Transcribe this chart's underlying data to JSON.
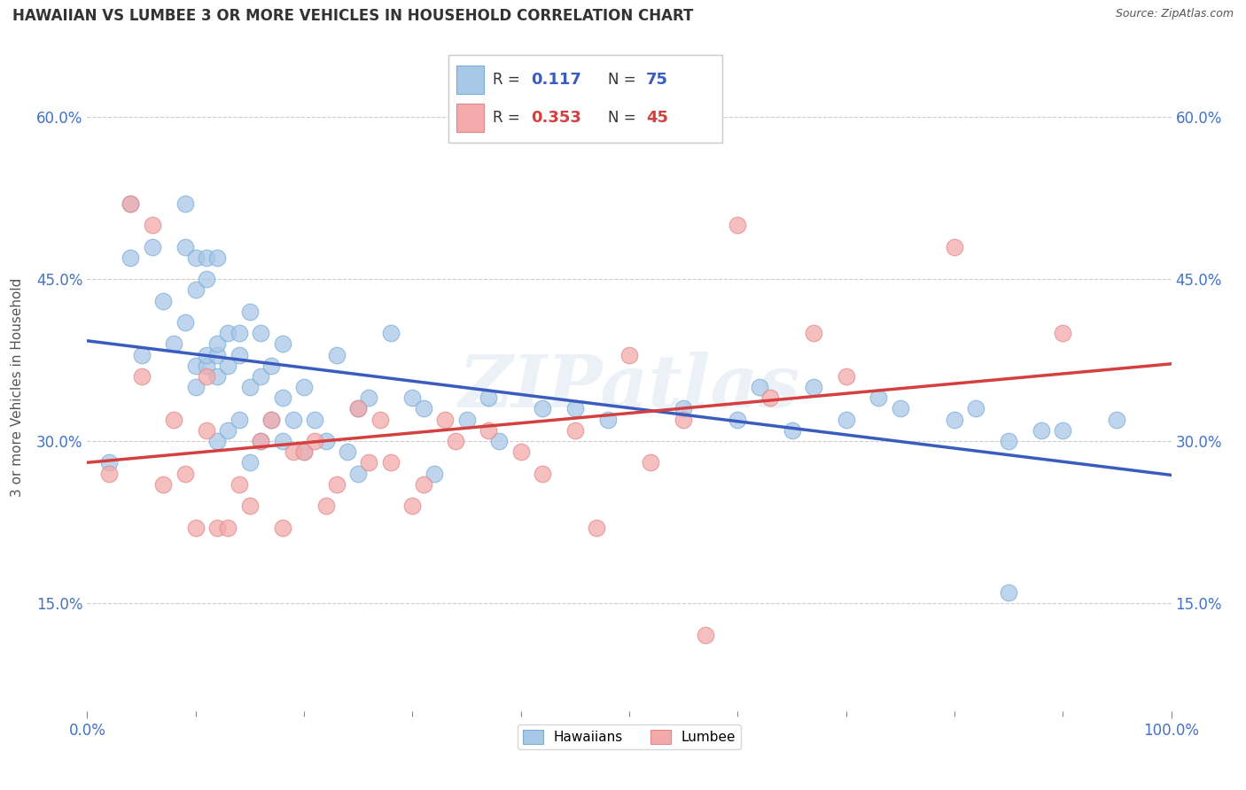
{
  "title": "HAWAIIAN VS LUMBEE 3 OR MORE VEHICLES IN HOUSEHOLD CORRELATION CHART",
  "source": "Source: ZipAtlas.com",
  "ylabel": "3 or more Vehicles in Household",
  "xlim": [
    0,
    100
  ],
  "ylim": [
    5,
    65
  ],
  "yticks": [
    15.0,
    30.0,
    45.0,
    60.0
  ],
  "hawaiian_R": 0.117,
  "hawaiian_N": 75,
  "lumbee_R": 0.353,
  "lumbee_N": 45,
  "hawaiian_color": "#a8c8e8",
  "lumbee_color": "#f4aaaa",
  "hawaiian_edge_color": "#7aadd4",
  "lumbee_edge_color": "#e08888",
  "hawaiian_line_color": "#3a5cbf",
  "lumbee_line_color": "#d44040",
  "watermark": "ZIPatlas",
  "background_color": "#ffffff",
  "grid_color": "#cccccc",
  "hawaiian_x": [
    2,
    4,
    4,
    5,
    6,
    7,
    8,
    9,
    9,
    9,
    10,
    10,
    10,
    10,
    11,
    11,
    11,
    11,
    12,
    12,
    12,
    12,
    12,
    13,
    13,
    13,
    14,
    14,
    14,
    15,
    15,
    15,
    16,
    16,
    16,
    17,
    17,
    18,
    18,
    18,
    19,
    20,
    20,
    21,
    22,
    23,
    24,
    25,
    25,
    26,
    28,
    30,
    31,
    32,
    35,
    37,
    38,
    42,
    45,
    48,
    55,
    60,
    62,
    65,
    67,
    70,
    73,
    75,
    80,
    82,
    85,
    85,
    88,
    90,
    95
  ],
  "hawaiian_y": [
    28,
    47,
    52,
    38,
    48,
    43,
    39,
    48,
    41,
    52,
    44,
    35,
    47,
    37,
    47,
    37,
    45,
    38,
    47,
    36,
    38,
    39,
    30,
    37,
    40,
    31,
    40,
    32,
    38,
    28,
    42,
    35,
    36,
    40,
    30,
    37,
    32,
    39,
    30,
    34,
    32,
    35,
    29,
    32,
    30,
    38,
    29,
    33,
    27,
    34,
    40,
    34,
    33,
    27,
    32,
    34,
    30,
    33,
    33,
    32,
    33,
    32,
    35,
    31,
    35,
    32,
    34,
    33,
    32,
    33,
    16,
    30,
    31,
    31,
    32
  ],
  "lumbee_x": [
    2,
    4,
    5,
    6,
    7,
    8,
    9,
    10,
    11,
    11,
    12,
    13,
    14,
    15,
    16,
    17,
    18,
    19,
    20,
    21,
    22,
    23,
    25,
    26,
    27,
    28,
    30,
    31,
    33,
    34,
    37,
    40,
    42,
    45,
    47,
    50,
    52,
    55,
    57,
    60,
    63,
    67,
    70,
    80,
    90
  ],
  "lumbee_y": [
    27,
    52,
    36,
    50,
    26,
    32,
    27,
    22,
    36,
    31,
    22,
    22,
    26,
    24,
    30,
    32,
    22,
    29,
    29,
    30,
    24,
    26,
    33,
    28,
    32,
    28,
    24,
    26,
    32,
    30,
    31,
    29,
    27,
    31,
    22,
    38,
    28,
    32,
    12,
    50,
    34,
    40,
    36,
    48,
    40
  ]
}
